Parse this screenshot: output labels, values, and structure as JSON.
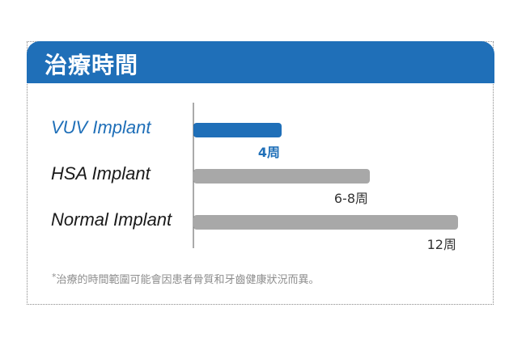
{
  "header": {
    "title": "治療時間"
  },
  "colors": {
    "accent": "#1f6fb8",
    "bar_default": "#a8a8a8",
    "label_default": "#1a1a1a"
  },
  "chart_data": {
    "type": "bar",
    "orientation": "horizontal",
    "categories": [
      "VUV Implant",
      "HSA Implant",
      "Normal Implant"
    ],
    "values": [
      4,
      8,
      12
    ],
    "value_labels": [
      "4周",
      "6-8周",
      "12周"
    ],
    "highlight_index": 0,
    "xlim": [
      0,
      12
    ],
    "grid": false
  },
  "footnote": {
    "marker": "*",
    "text": "治療的時間範圍可能會因患者骨質和牙齒健康狀況而異。"
  }
}
